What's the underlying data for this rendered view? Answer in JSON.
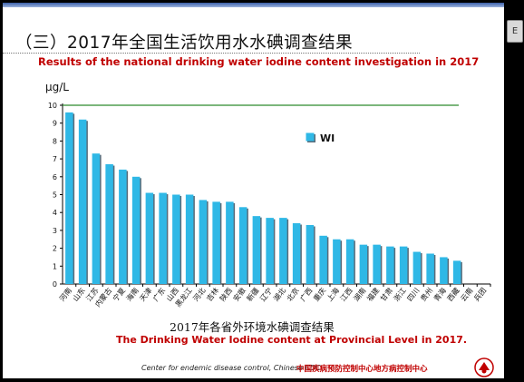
{
  "slide": {
    "title": "（三）2017年全国生活饮用水水碘调查结果",
    "subtitle_en": "Results of the national drinking water iodine content investigation in 2017",
    "caption_cn": "2017年各省外环境水碘调查结果",
    "caption_en": "The Drinking Water Iodine content at Provincial Level in 2017.",
    "footer_en": "Center for endemic disease control,  Chinese CDC",
    "footer_cn": "中国疾病预防控制中心地方病控制中心",
    "side_button": "E"
  },
  "chart_data": {
    "type": "bar",
    "ylabel": "μg/L",
    "ylim": [
      0,
      10
    ],
    "yticks": [
      "0",
      "1",
      "2",
      "3",
      "4",
      "5",
      "6",
      "7",
      "8",
      "9",
      "10"
    ],
    "reference_line": 10,
    "legend": "WI",
    "legend_position": "top-right",
    "categories": [
      "河南",
      "山东",
      "江苏",
      "内蒙古",
      "宁夏",
      "海南",
      "天津",
      "广东",
      "山西",
      "黑龙江",
      "河北",
      "吉林",
      "陕西",
      "安徽",
      "新疆",
      "辽宁",
      "湖北",
      "北京",
      "广西",
      "重庆",
      "上海",
      "江西",
      "湖南",
      "福建",
      "甘肃",
      "浙江",
      "四川",
      "贵州",
      "青海",
      "西藏",
      "云南",
      "兵团"
    ],
    "series": [
      {
        "name": "WI",
        "values": [
          9.6,
          9.2,
          7.3,
          6.7,
          6.4,
          6.0,
          5.1,
          5.1,
          5.0,
          5.0,
          4.7,
          4.6,
          4.6,
          4.3,
          3.8,
          3.7,
          3.7,
          3.4,
          3.3,
          2.7,
          2.5,
          2.5,
          2.2,
          2.2,
          2.1,
          2.1,
          1.8,
          1.7,
          1.5,
          1.3,
          0,
          0
        ]
      }
    ],
    "colors": {
      "bar": "#2fb8e6",
      "reference": "#2e8b2e"
    }
  }
}
